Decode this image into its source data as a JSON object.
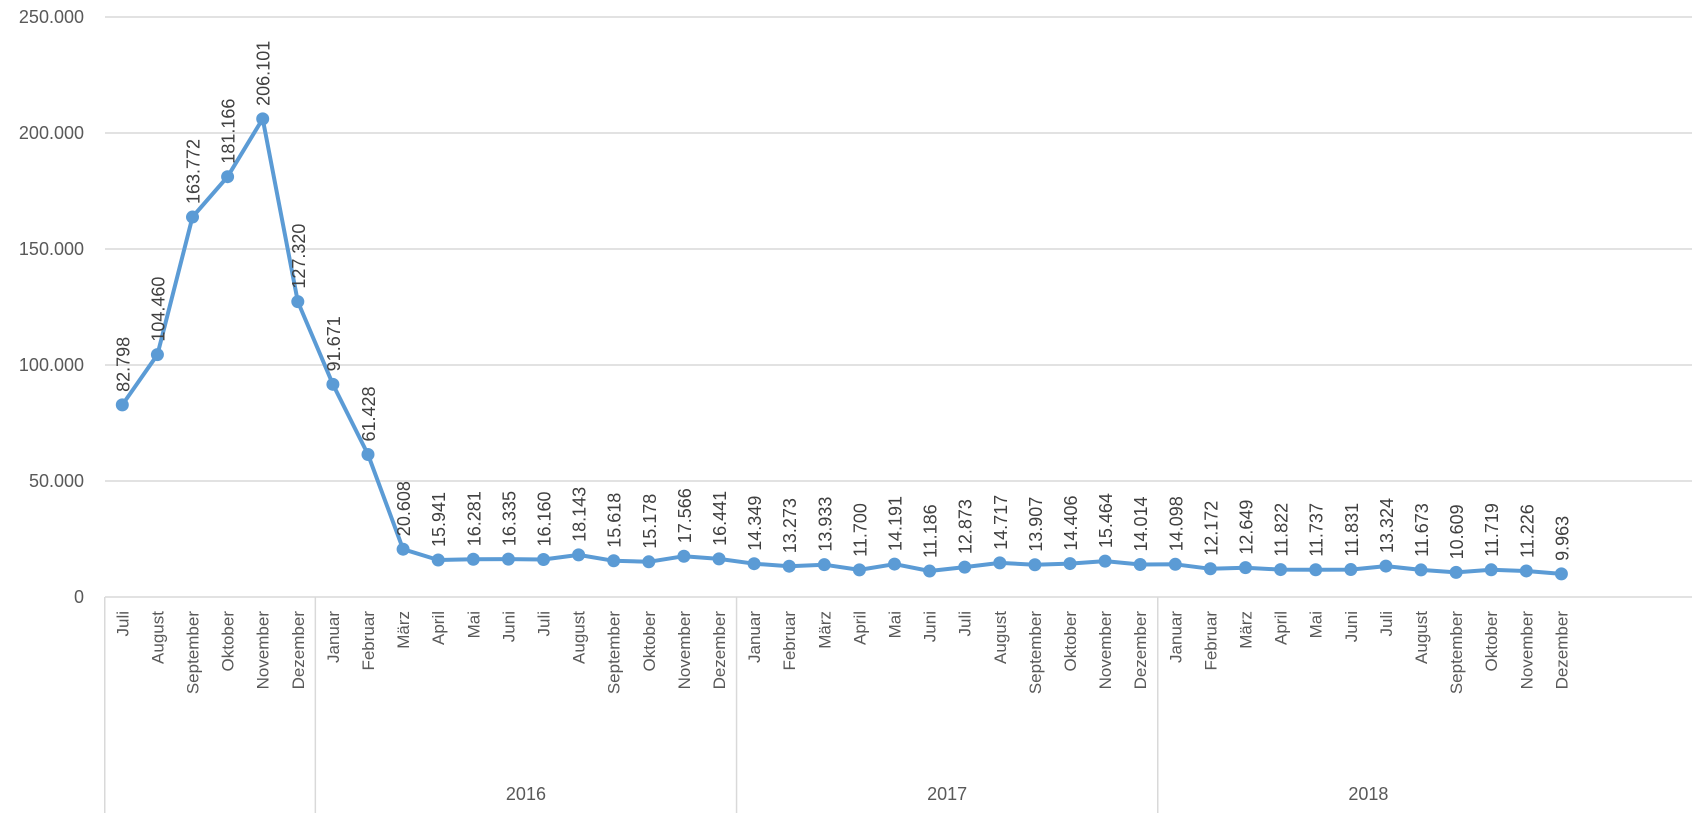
{
  "chart_data": {
    "type": "line",
    "title": "",
    "xlabel": "",
    "ylabel": "",
    "ylim": [
      0,
      250000
    ],
    "yticks": [
      {
        "value": 0,
        "label": "0"
      },
      {
        "value": 50000,
        "label": "50.000"
      },
      {
        "value": 100000,
        "label": "100.000"
      },
      {
        "value": 150000,
        "label": "150.000"
      },
      {
        "value": 200000,
        "label": "200.000"
      },
      {
        "value": 250000,
        "label": "250.000"
      }
    ],
    "grid": true,
    "legend": "none",
    "line_color": "#5B9BD5",
    "categories": [
      "Juli",
      "August",
      "September",
      "Oktober",
      "November",
      "Dezember",
      "Januar",
      "Februar",
      "März",
      "April",
      "Mai",
      "Juni",
      "Juli",
      "August",
      "September",
      "Oktober",
      "November",
      "Dezember",
      "Januar",
      "Februar",
      "März",
      "April",
      "Mai",
      "Juni",
      "Juli",
      "August",
      "September",
      "Oktober",
      "November",
      "Dezember",
      "Januar",
      "Februar",
      "März",
      "April",
      "Mai",
      "Juni",
      "Juli",
      "August",
      "September",
      "Oktober",
      "November",
      "Dezember"
    ],
    "year_groups": [
      {
        "label": "",
        "start": 0,
        "count": 6
      },
      {
        "label": "2016",
        "start": 6,
        "count": 12
      },
      {
        "label": "2017",
        "start": 18,
        "count": 12
      },
      {
        "label": "2018",
        "start": 30,
        "count": 12
      }
    ],
    "series": [
      {
        "values": [
          82798,
          104460,
          163772,
          181166,
          206101,
          127320,
          91671,
          61428,
          20608,
          15941,
          16281,
          16335,
          16160,
          18143,
          15618,
          15178,
          17566,
          16441,
          14349,
          13273,
          13933,
          11700,
          14191,
          11186,
          12873,
          14717,
          13907,
          14406,
          15464,
          14014,
          14098,
          12172,
          12649,
          11822,
          11737,
          11831,
          13324,
          11673,
          10609,
          11719,
          11226,
          9963
        ],
        "labels": [
          "82.798",
          "104.460",
          "163.772",
          "181.166",
          "206.101",
          "127.320",
          "91.671",
          "61.428",
          "20.608",
          "15.941",
          "16.281",
          "16.335",
          "16.160",
          "18.143",
          "15.618",
          "15.178",
          "17.566",
          "16.441",
          "14.349",
          "13.273",
          "13.933",
          "11.700",
          "14.191",
          "11.186",
          "12.873",
          "14.717",
          "13.907",
          "14.406",
          "15.464",
          "14.014",
          "14.098",
          "12.172",
          "12.649",
          "11.822",
          "11.737",
          "11.831",
          "13.324",
          "11.673",
          "10.609",
          "11.719",
          "11.226",
          "9.963"
        ]
      }
    ]
  }
}
